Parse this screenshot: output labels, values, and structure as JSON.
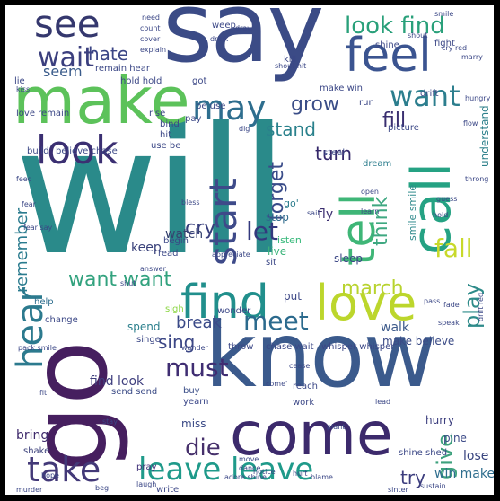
{
  "words": [
    {
      "text": "will",
      "color": "#2a8a8a"
    },
    {
      "text": "go",
      "color": "#461f5f"
    },
    {
      "text": "know",
      "color": "#3b5a8c"
    },
    {
      "text": "say",
      "color": "#3b4b86"
    },
    {
      "text": "make",
      "color": "#5cc25a"
    },
    {
      "text": "come",
      "color": "#3c2a6c"
    },
    {
      "text": "love",
      "color": "#bcd62c"
    },
    {
      "text": "call",
      "color": "#25a283"
    },
    {
      "text": "tell",
      "color": "#3fb677"
    },
    {
      "text": "find",
      "color": "#218f8c"
    },
    {
      "text": "feel",
      "color": "#3b5490"
    },
    {
      "text": "look",
      "color": "#3b2f72"
    },
    {
      "text": "take",
      "color": "#433978"
    },
    {
      "text": "hear",
      "color": "#2c7a8e"
    },
    {
      "text": "start",
      "color": "#3e4a89"
    },
    {
      "text": "see",
      "color": "#35386e"
    },
    {
      "text": "may",
      "color": "#2e6e8e"
    },
    {
      "text": "leave leave",
      "color": "#1f9a8a"
    },
    {
      "text": "want",
      "color": "#2c7e8e"
    },
    {
      "text": "wait",
      "color": "#3b3f7e"
    },
    {
      "text": "look find",
      "color": "#29a07a"
    },
    {
      "text": "meet",
      "color": "#2b6a8d"
    },
    {
      "text": "let",
      "color": "#33397e"
    },
    {
      "text": "must",
      "color": "#3f2d72"
    },
    {
      "text": "die",
      "color": "#46306b"
    },
    {
      "text": "fall",
      "color": "#c8d92a"
    },
    {
      "text": "march",
      "color": "#b8d32f"
    },
    {
      "text": "give",
      "color": "#3da17d"
    },
    {
      "text": "forget",
      "color": "#3a4c89"
    },
    {
      "text": "think",
      "color": "#3fa881"
    },
    {
      "text": "play",
      "color": "#2e8b8a"
    },
    {
      "text": "want want",
      "color": "#32a27e"
    },
    {
      "text": "grow",
      "color": "#3b4e88"
    },
    {
      "text": "cry",
      "color": "#383e7c"
    },
    {
      "text": "sing",
      "color": "#3c4786"
    },
    {
      "text": "break",
      "color": "#3a4a88"
    },
    {
      "text": "remember",
      "color": "#2a7b8e"
    },
    {
      "text": "turn",
      "color": "#35286a"
    },
    {
      "text": "fill",
      "color": "#3a2f70"
    },
    {
      "text": "stand",
      "color": "#2a818c"
    },
    {
      "text": "hate",
      "color": "#3b4585"
    },
    {
      "text": "seem",
      "color": "#3b5c8b"
    },
    {
      "text": "try",
      "color": "#3c3d7e"
    },
    {
      "text": "bring",
      "color": "#3f2a6c"
    },
    {
      "text": "find look",
      "color": "#3f3f7e"
    },
    {
      "text": "watch",
      "color": "#35426f"
    },
    {
      "text": "keep",
      "color": "#39417a"
    },
    {
      "text": "lose",
      "color": "#38447f"
    },
    {
      "text": "win make",
      "color": "#2f6e8e"
    },
    {
      "text": "make believe",
      "color": "#3b4b86"
    },
    {
      "text": "understand",
      "color": "#2c7f8a"
    },
    {
      "text": "sleep",
      "color": "#3b4685"
    },
    {
      "text": "fly",
      "color": "#3a2d6f"
    },
    {
      "text": "walk",
      "color": "#3d5a8a"
    },
    {
      "text": "spend",
      "color": "#2b7f8c"
    },
    {
      "text": "put",
      "color": "#3c4786"
    },
    {
      "text": "live",
      "color": "#3cb47b"
    },
    {
      "text": "stop",
      "color": "#2f6a8d"
    },
    {
      "text": "smile smile",
      "color": "#2f8a8c"
    },
    {
      "text": "go'",
      "color": "#2e7e8e"
    },
    {
      "text": "listen",
      "color": "#35b879"
    },
    {
      "text": "miss",
      "color": "#3b4a86"
    },
    {
      "text": "hurry",
      "color": "#3c3e7e"
    },
    {
      "text": "pine",
      "color": "#3b4987"
    },
    {
      "text": "send send",
      "color": "#3b4b86"
    },
    {
      "text": "buy",
      "color": "#3b4e88"
    },
    {
      "text": "yearn",
      "color": "#3a4688"
    },
    {
      "text": "pray",
      "color": "#42327a"
    },
    {
      "text": "write",
      "color": "#3b4686"
    },
    {
      "text": "shake",
      "color": "#3a3f7a"
    },
    {
      "text": "help",
      "color": "#2e6e8e"
    },
    {
      "text": "change",
      "color": "#3b4786"
    },
    {
      "text": "sigh",
      "color": "#8cd645"
    },
    {
      "text": "wonder",
      "color": "#3b4786"
    },
    {
      "text": "throw",
      "color": "#3b4786"
    },
    {
      "text": "chase wait",
      "color": "#3b4786"
    },
    {
      "text": "whisper whisper",
      "color": "#3b4786"
    },
    {
      "text": "work",
      "color": "#3b4786"
    },
    {
      "text": "reach",
      "color": "#3b4786"
    },
    {
      "text": "dream",
      "color": "#2e7e8e"
    },
    {
      "text": "picture",
      "color": "#3b4786"
    },
    {
      "text": "drift",
      "color": "#3b4786"
    },
    {
      "text": "fight",
      "color": "#3b4786"
    },
    {
      "text": "shine",
      "color": "#3b4786"
    },
    {
      "text": "kill",
      "color": "#3b4786"
    },
    {
      "text": "weep",
      "color": "#3b4786"
    },
    {
      "text": "lie",
      "color": "#3b4786"
    },
    {
      "text": "remain hear",
      "color": "#3b4786"
    },
    {
      "text": "hold hold",
      "color": "#3b4786"
    },
    {
      "text": "be use",
      "color": "#3b4786"
    },
    {
      "text": "make win",
      "color": "#3b4786"
    },
    {
      "text": "run",
      "color": "#3b4786"
    },
    {
      "text": "love remain",
      "color": "#3b4786"
    },
    {
      "text": "rise",
      "color": "#3b4786"
    },
    {
      "text": "bind",
      "color": "#3b4786"
    },
    {
      "text": "hit",
      "color": "#3b4786"
    },
    {
      "text": "use be",
      "color": "#3b4786"
    },
    {
      "text": "build",
      "color": "#3b4786"
    },
    {
      "text": "believe chase",
      "color": "#3b4786"
    },
    {
      "text": "got",
      "color": "#3b4786"
    },
    {
      "text": "pay",
      "color": "#3b4786"
    },
    {
      "text": "begin",
      "color": "#3b4786"
    },
    {
      "text": "read",
      "color": "#3b4786"
    },
    {
      "text": "sit",
      "color": "#3b4786"
    },
    {
      "text": "singe",
      "color": "#3b4786"
    },
    {
      "text": "steal",
      "color": "#3b4786"
    },
    {
      "text": "shine shed",
      "color": "#3b4786"
    },
    {
      "text": "need",
      "color": "#3b4786"
    },
    {
      "text": "smile",
      "color": "#3b4786"
    },
    {
      "text": "draw",
      "color": "#3b4786"
    },
    {
      "text": "shout hit",
      "color": "#3b4786"
    },
    {
      "text": "laugh",
      "color": "#3b4786"
    },
    {
      "text": "move",
      "color": "#3b4786"
    },
    {
      "text": "dance",
      "color": "#3b4786"
    },
    {
      "text": "adore shine",
      "color": "#3b4786"
    },
    {
      "text": "drift red",
      "color": "#3b4786"
    },
    {
      "text": "come'",
      "color": "#3b4786"
    },
    {
      "text": "pass",
      "color": "#3b4786"
    },
    {
      "text": "hurt",
      "color": "#3b4786"
    },
    {
      "text": "lead",
      "color": "#3b4786"
    },
    {
      "text": "stay",
      "color": "#3b4786"
    },
    {
      "text": "notice",
      "color": "#3b4786"
    },
    {
      "text": "sinter",
      "color": "#3b4786"
    },
    {
      "text": "murder",
      "color": "#3b4786"
    },
    {
      "text": "kiss",
      "color": "#3b4786"
    },
    {
      "text": "wander",
      "color": "#3b4786"
    },
    {
      "text": "cease",
      "color": "#3b4786"
    },
    {
      "text": "flow",
      "color": "#3b4786"
    },
    {
      "text": "dig",
      "color": "#3b4786"
    },
    {
      "text": "open",
      "color": "#3b4786"
    },
    {
      "text": "learn",
      "color": "#3b4786"
    },
    {
      "text": "fear",
      "color": "#3b4786"
    },
    {
      "text": "fit",
      "color": "#3b4786"
    },
    {
      "text": "pack smile",
      "color": "#3b4786"
    },
    {
      "text": "feed",
      "color": "#3b4786"
    },
    {
      "text": "shout",
      "color": "#3b4786"
    },
    {
      "text": "fear say",
      "color": "#3b4786"
    },
    {
      "text": "cover",
      "color": "#3b4786"
    },
    {
      "text": "shut",
      "color": "#3b4786"
    },
    {
      "text": "bless",
      "color": "#3b4786"
    },
    {
      "text": "appreciate",
      "color": "#3b4786"
    },
    {
      "text": "answer",
      "color": "#3b4786"
    },
    {
      "text": "marry",
      "color": "#3b4786"
    },
    {
      "text": "hungry",
      "color": "#3b4786"
    },
    {
      "text": "speak",
      "color": "#3b4786"
    },
    {
      "text": "throng",
      "color": "#3b4786"
    },
    {
      "text": "guess",
      "color": "#3b4786"
    },
    {
      "text": "hope",
      "color": "#3b4786"
    },
    {
      "text": "sail",
      "color": "#3b4786"
    },
    {
      "text": "sustain",
      "color": "#3b4786"
    },
    {
      "text": "plant",
      "color": "#3b4786"
    },
    {
      "text": "blame",
      "color": "#3b4786"
    },
    {
      "text": "count",
      "color": "#3b4786"
    },
    {
      "text": "explain",
      "color": "#3b4786"
    },
    {
      "text": "drink",
      "color": "#3b4786"
    },
    {
      "text": "hold",
      "color": "#3b4786"
    },
    {
      "text": "fade",
      "color": "#3b4786"
    },
    {
      "text": "beg",
      "color": "#3b4786"
    },
    {
      "text": "cry red",
      "color": "#3b4786"
    }
  ]
}
